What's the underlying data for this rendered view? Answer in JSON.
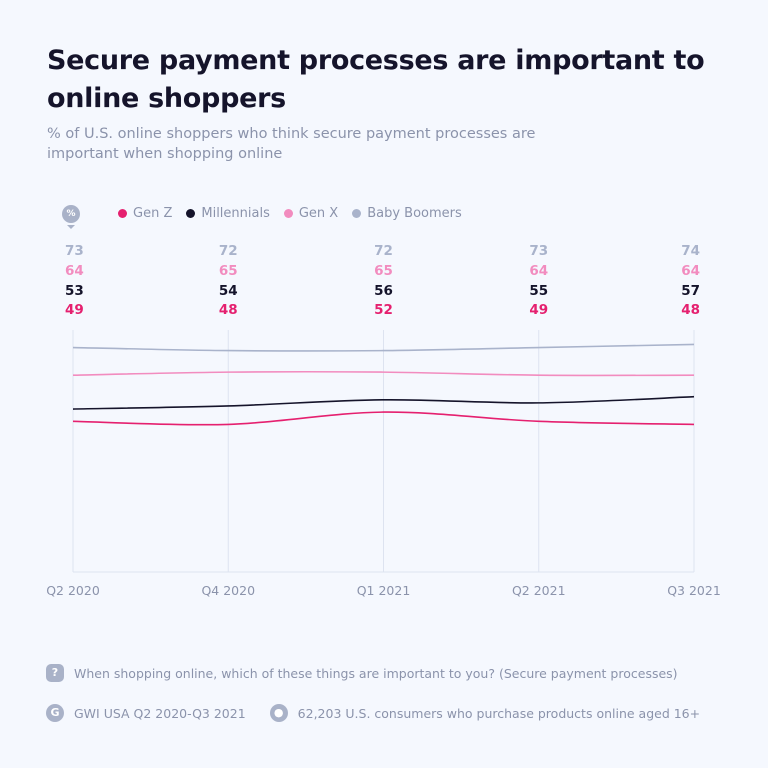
{
  "title": "Secure payment processes are important to online shoppers",
  "subtitle": "% of U.S. online shoppers who think secure payment processes are important when shopping online",
  "unit_badge": "%",
  "footer": {
    "question": "When shopping online, which of these things are important to you? (Secure payment processes)",
    "source": "GWI USA Q2 2020-Q3 2021",
    "sample": "62,203 U.S. consumers who purchase products online aged 16+",
    "icons": [
      "question-icon",
      "source-icon",
      "people-icon"
    ]
  },
  "chart_data": {
    "type": "line",
    "categories": [
      "Q2 2020",
      "Q4 2020",
      "Q1 2021",
      "Q2 2021",
      "Q3 2021"
    ],
    "ylim": [
      0,
      80
    ],
    "grid": "vertical",
    "legend_placement": "top",
    "series": [
      {
        "name": "Baby Boomers",
        "color": "#a9b3cb",
        "values": [
          73,
          72,
          72,
          73,
          74
        ]
      },
      {
        "name": "Gen X",
        "color": "#f28cbf",
        "values": [
          64,
          65,
          65,
          64,
          64
        ]
      },
      {
        "name": "Millennials",
        "color": "#15142b",
        "values": [
          53,
          54,
          56,
          55,
          57
        ]
      },
      {
        "name": "Gen Z",
        "color": "#e5206f",
        "values": [
          49,
          48,
          52,
          49,
          48
        ]
      }
    ],
    "legend_order": [
      "Gen Z",
      "Millennials",
      "Gen X",
      "Baby Boomers"
    ]
  }
}
